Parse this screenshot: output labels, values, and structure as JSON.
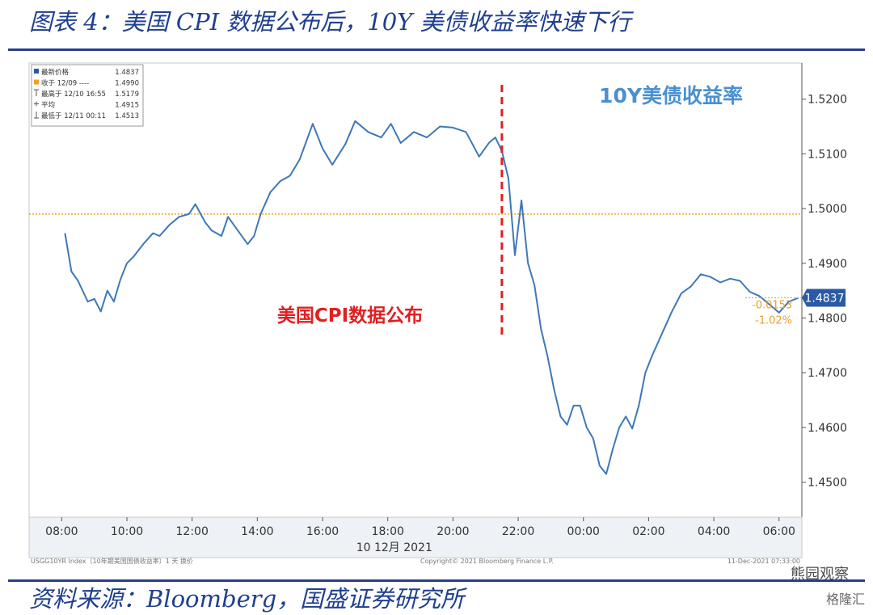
{
  "figure": {
    "title": "图表 4：美国 CPI 数据公布后，10Y 美债收益率快速下行",
    "source": "资料来源：Bloomberg，国盛证券研究所",
    "watermark": "熊园观察",
    "watermark2": "格隆汇"
  },
  "legend": {
    "rows": [
      {
        "label": "最新价格",
        "value": "1.4837",
        "marker": "square",
        "color": "#2a5aa6"
      },
      {
        "label": "收于 12/09 ----",
        "value": "1.4990",
        "marker": "square",
        "color": "#f0a020"
      },
      {
        "label": "最高于 12/10 16:55",
        "value": "1.5179",
        "marker": "up",
        "color": "#555555"
      },
      {
        "label": "平均",
        "value": "1.4915",
        "marker": "plus",
        "color": "#555555"
      },
      {
        "label": "最低于 12/11 00:11",
        "value": "1.4513",
        "marker": "down",
        "color": "#555555"
      }
    ]
  },
  "footer": {
    "left": "USGG10YR Index（10年期美国国债收益率）1 天  换价",
    "center": "Copyright© 2021 Bloomberg Finance L.P.",
    "right": "11-Dec-2021 07:33:00"
  },
  "chart_data": {
    "type": "line",
    "title": "10Y美债收益率",
    "xlabel": "",
    "ylabel": "",
    "x_date_label": "10 12月 2021",
    "x_tick_labels": [
      "08:00",
      "10:00",
      "12:00",
      "14:00",
      "16:00",
      "18:00",
      "20:00",
      "22:00",
      "00:00",
      "02:00",
      "04:00",
      "06:00"
    ],
    "x_range_hours": [
      7.0,
      30.7
    ],
    "y_tick_labels": [
      "1.4500",
      "1.4600",
      "1.4700",
      "1.4800",
      "1.4900",
      "1.5000",
      "1.5100",
      "1.5200"
    ],
    "ylim": [
      1.4436,
      1.5266
    ],
    "grid": false,
    "legend_position": "top-left",
    "line_color": "#3e78b8",
    "reference_lines": [
      {
        "name": "收于 12/09",
        "value": 1.499,
        "color": "#f0a020",
        "style": "dotted"
      }
    ],
    "event_marker": {
      "label": "美国CPI数据公布",
      "x_hour": 21.5,
      "color": "#e02020",
      "style": "dashed"
    },
    "last_value": {
      "value": "1.4837",
      "change": "-0.0153",
      "change_pct": "-1.02%"
    },
    "series": [
      {
        "x": [
          8.1,
          8.3,
          8.5,
          8.8,
          9.0,
          9.2,
          9.4,
          9.6,
          9.8,
          10.0,
          10.2,
          10.5,
          10.8,
          11.0,
          11.3,
          11.6,
          11.9,
          12.1,
          12.4,
          12.6,
          12.9,
          13.1,
          13.4,
          13.7,
          13.9,
          14.1,
          14.4,
          14.7,
          15.0,
          15.3,
          15.7,
          16.0,
          16.3,
          16.7,
          17.0,
          17.4,
          17.8,
          18.1,
          18.4,
          18.8,
          19.2,
          19.6,
          20.0,
          20.4,
          20.8,
          21.1,
          21.3,
          21.5,
          21.7,
          21.9,
          22.1,
          22.3,
          22.5,
          22.7,
          22.9,
          23.1,
          23.3,
          23.5,
          23.7,
          23.9,
          24.1,
          24.3,
          24.5,
          24.7,
          24.9,
          25.1,
          25.3,
          25.5,
          25.7,
          25.9,
          26.1,
          26.4,
          26.7,
          27.0,
          27.3,
          27.6,
          27.9,
          28.2,
          28.5,
          28.8,
          29.1,
          29.4,
          29.7,
          30.0,
          30.3,
          30.6
        ],
        "values": [
          1.4955,
          1.4885,
          1.4868,
          1.483,
          1.4835,
          1.4812,
          1.485,
          1.483,
          1.487,
          1.49,
          1.4912,
          1.4935,
          1.4955,
          1.495,
          1.497,
          1.4985,
          1.499,
          1.5008,
          1.4975,
          1.496,
          1.495,
          1.4985,
          1.496,
          1.4935,
          1.495,
          1.499,
          1.503,
          1.505,
          1.506,
          1.509,
          1.5155,
          1.511,
          1.508,
          1.5118,
          1.516,
          1.514,
          1.513,
          1.5155,
          1.512,
          1.514,
          1.513,
          1.515,
          1.5148,
          1.514,
          1.5095,
          1.512,
          1.513,
          1.5105,
          1.5055,
          1.4915,
          1.5015,
          1.49,
          1.486,
          1.478,
          1.473,
          1.467,
          1.462,
          1.4605,
          1.464,
          1.464,
          1.46,
          1.458,
          1.453,
          1.4515,
          1.456,
          1.46,
          1.462,
          1.4598,
          1.464,
          1.47,
          1.473,
          1.477,
          1.481,
          1.4845,
          1.4858,
          1.488,
          1.4875,
          1.4865,
          1.4872,
          1.4868,
          1.4848,
          1.484,
          1.4825,
          1.481,
          1.483,
          1.4837
        ]
      }
    ]
  }
}
